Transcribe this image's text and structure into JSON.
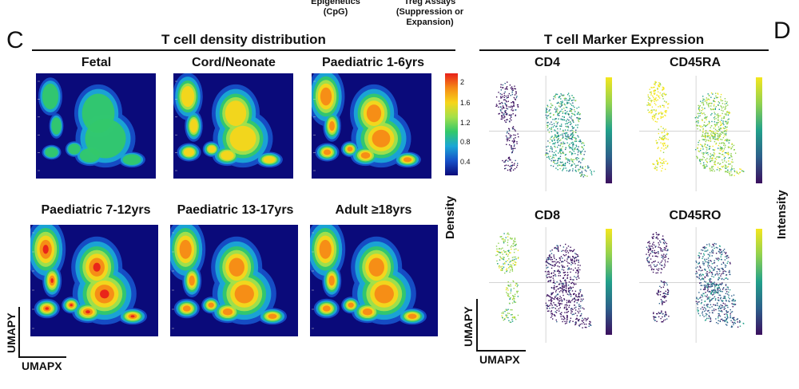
{
  "top_labels": {
    "epigenetics": "Epigenetics",
    "epigenetics_sub": "(CpG)",
    "treg": "Treg Assays",
    "treg_sub1": "(Suppression or",
    "treg_sub2": "Expansion)"
  },
  "panel_c": {
    "letter": "C",
    "title": "T cell density distribution",
    "plots": [
      {
        "name": "Fetal"
      },
      {
        "name": "Cord/Neonate"
      },
      {
        "name": "Paediatric 1-6yrs"
      },
      {
        "name": "Paediatric 7-12yrs"
      },
      {
        "name": "Paediatric 13-17yrs"
      },
      {
        "name": "Adult ≥18yrs"
      }
    ],
    "legend": {
      "label": "Density",
      "ticks": [
        "2",
        "1.6",
        "1.2",
        "0.8",
        "0.4"
      ],
      "colors": [
        "#e8201a",
        "#f58a16",
        "#f7d51a",
        "#a4e04a",
        "#33c86a",
        "#1aa6d6",
        "#1650c8",
        "#0a0a7a"
      ]
    },
    "axis_x": "UMAPX",
    "axis_y": "UMAPY"
  },
  "panel_d": {
    "letter": "D",
    "title": "T cell Marker Expression",
    "plots": [
      {
        "name": "CD4"
      },
      {
        "name": "CD45RA"
      },
      {
        "name": "CD8"
      },
      {
        "name": "CD45RO"
      }
    ],
    "legend_label": "Intensity",
    "colors": [
      "#3b0f5e",
      "#2c5f8a",
      "#21a08a",
      "#8fd14f",
      "#f4e61e"
    ],
    "axis_x": "UMAPX",
    "axis_y": "UMAPY"
  }
}
